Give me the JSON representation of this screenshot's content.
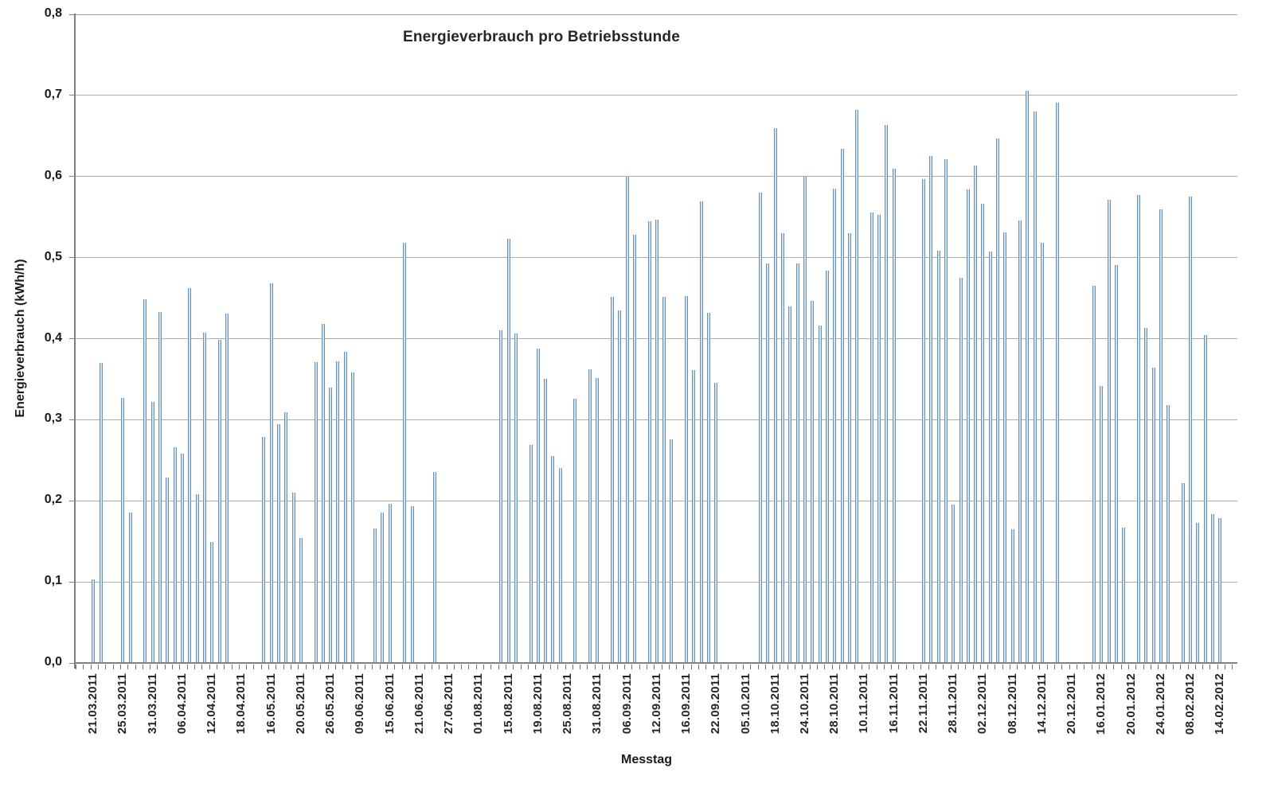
{
  "chart_data": {
    "type": "bar",
    "title": "Energieverbrauch pro Betriebsstunde",
    "xlabel": "Messtag",
    "ylabel": "Energieverbrauch (kWh/h)",
    "unit": "kWh/h",
    "ylim": [
      0.0,
      0.8
    ],
    "y_step": 0.1,
    "grid": true,
    "legend": false,
    "y_tick_labels": [
      "0,0",
      "0,1",
      "0,2",
      "0,3",
      "0,4",
      "0,5",
      "0,6",
      "0,7",
      "0,8"
    ],
    "x_tick_labels": [
      "21.03.2011",
      "25.03.2011",
      "31.03.2011",
      "06.04.2011",
      "12.04.2011",
      "18.04.2011",
      "16.05.2011",
      "20.05.2011",
      "26.05.2011",
      "09.06.2011",
      "15.06.2011",
      "21.06.2011",
      "27.06.2011",
      "01.08.2011",
      "15.08.2011",
      "19.08.2011",
      "25.08.2011",
      "31.08.2011",
      "06.09.2011",
      "12.09.2011",
      "16.09.2011",
      "22.09.2011",
      "05.10.2011",
      "18.10.2011",
      "24.10.2011",
      "28.10.2011",
      "10.11.2011",
      "16.11.2011",
      "22.11.2011",
      "28.11.2011",
      "02.12.2011",
      "08.12.2011",
      "14.12.2011",
      "20.12.2011",
      "16.01.2012",
      "20.01.2012",
      "24.01.2012",
      "08.02.2012",
      "14.02.2012"
    ],
    "x_label_every_n_slots": 4,
    "total_slots": 153,
    "points": [
      {
        "slot": 0,
        "value": 0.103
      },
      {
        "slot": 1,
        "value": 0.37
      },
      {
        "slot": 4,
        "value": 0.327
      },
      {
        "slot": 5,
        "value": 0.186
      },
      {
        "slot": 7,
        "value": 0.449
      },
      {
        "slot": 8,
        "value": 0.322
      },
      {
        "slot": 9,
        "value": 0.433
      },
      {
        "slot": 10,
        "value": 0.229
      },
      {
        "slot": 11,
        "value": 0.266
      },
      {
        "slot": 12,
        "value": 0.258
      },
      {
        "slot": 13,
        "value": 0.462
      },
      {
        "slot": 14,
        "value": 0.208
      },
      {
        "slot": 15,
        "value": 0.407
      },
      {
        "slot": 16,
        "value": 0.149
      },
      {
        "slot": 17,
        "value": 0.399
      },
      {
        "slot": 18,
        "value": 0.431
      },
      {
        "slot": 23,
        "value": 0.279
      },
      {
        "slot": 24,
        "value": 0.468
      },
      {
        "slot": 25,
        "value": 0.295
      },
      {
        "slot": 26,
        "value": 0.309
      },
      {
        "slot": 27,
        "value": 0.21
      },
      {
        "slot": 28,
        "value": 0.154
      },
      {
        "slot": 30,
        "value": 0.371
      },
      {
        "slot": 31,
        "value": 0.418
      },
      {
        "slot": 32,
        "value": 0.34
      },
      {
        "slot": 33,
        "value": 0.372
      },
      {
        "slot": 34,
        "value": 0.384
      },
      {
        "slot": 35,
        "value": 0.358
      },
      {
        "slot": 38,
        "value": 0.166
      },
      {
        "slot": 39,
        "value": 0.186
      },
      {
        "slot": 40,
        "value": 0.196
      },
      {
        "slot": 42,
        "value": 0.518
      },
      {
        "slot": 43,
        "value": 0.193
      },
      {
        "slot": 46,
        "value": 0.236
      },
      {
        "slot": 55,
        "value": 0.41
      },
      {
        "slot": 56,
        "value": 0.523
      },
      {
        "slot": 57,
        "value": 0.406
      },
      {
        "slot": 59,
        "value": 0.269
      },
      {
        "slot": 60,
        "value": 0.388
      },
      {
        "slot": 61,
        "value": 0.35
      },
      {
        "slot": 62,
        "value": 0.255
      },
      {
        "slot": 63,
        "value": 0.241
      },
      {
        "slot": 65,
        "value": 0.326
      },
      {
        "slot": 67,
        "value": 0.362
      },
      {
        "slot": 68,
        "value": 0.351
      },
      {
        "slot": 70,
        "value": 0.452
      },
      {
        "slot": 71,
        "value": 0.435
      },
      {
        "slot": 72,
        "value": 0.6
      },
      {
        "slot": 73,
        "value": 0.528
      },
      {
        "slot": 75,
        "value": 0.545
      },
      {
        "slot": 76,
        "value": 0.547
      },
      {
        "slot": 77,
        "value": 0.452
      },
      {
        "slot": 78,
        "value": 0.276
      },
      {
        "slot": 80,
        "value": 0.453
      },
      {
        "slot": 81,
        "value": 0.361
      },
      {
        "slot": 82,
        "value": 0.569
      },
      {
        "slot": 83,
        "value": 0.432
      },
      {
        "slot": 84,
        "value": 0.346
      },
      {
        "slot": 90,
        "value": 0.58
      },
      {
        "slot": 91,
        "value": 0.493
      },
      {
        "slot": 92,
        "value": 0.66
      },
      {
        "slot": 93,
        "value": 0.53
      },
      {
        "slot": 94,
        "value": 0.44
      },
      {
        "slot": 95,
        "value": 0.493
      },
      {
        "slot": 96,
        "value": 0.6
      },
      {
        "slot": 97,
        "value": 0.447
      },
      {
        "slot": 98,
        "value": 0.416
      },
      {
        "slot": 99,
        "value": 0.484
      },
      {
        "slot": 100,
        "value": 0.585
      },
      {
        "slot": 101,
        "value": 0.634
      },
      {
        "slot": 102,
        "value": 0.53
      },
      {
        "slot": 103,
        "value": 0.682
      },
      {
        "slot": 105,
        "value": 0.556
      },
      {
        "slot": 106,
        "value": 0.553
      },
      {
        "slot": 107,
        "value": 0.664
      },
      {
        "slot": 108,
        "value": 0.61
      },
      {
        "slot": 112,
        "value": 0.597
      },
      {
        "slot": 113,
        "value": 0.625
      },
      {
        "slot": 114,
        "value": 0.509
      },
      {
        "slot": 115,
        "value": 0.621
      },
      {
        "slot": 116,
        "value": 0.195
      },
      {
        "slot": 117,
        "value": 0.475
      },
      {
        "slot": 118,
        "value": 0.584
      },
      {
        "slot": 119,
        "value": 0.614
      },
      {
        "slot": 120,
        "value": 0.566
      },
      {
        "slot": 121,
        "value": 0.508
      },
      {
        "slot": 122,
        "value": 0.647
      },
      {
        "slot": 123,
        "value": 0.531
      },
      {
        "slot": 124,
        "value": 0.165
      },
      {
        "slot": 125,
        "value": 0.546
      },
      {
        "slot": 126,
        "value": 0.706
      },
      {
        "slot": 127,
        "value": 0.68
      },
      {
        "slot": 128,
        "value": 0.518
      },
      {
        "slot": 130,
        "value": 0.691
      },
      {
        "slot": 135,
        "value": 0.465
      },
      {
        "slot": 136,
        "value": 0.342
      },
      {
        "slot": 137,
        "value": 0.571
      },
      {
        "slot": 138,
        "value": 0.491
      },
      {
        "slot": 139,
        "value": 0.167
      },
      {
        "slot": 141,
        "value": 0.577
      },
      {
        "slot": 142,
        "value": 0.413
      },
      {
        "slot": 143,
        "value": 0.364
      },
      {
        "slot": 144,
        "value": 0.56
      },
      {
        "slot": 145,
        "value": 0.318
      },
      {
        "slot": 147,
        "value": 0.222
      },
      {
        "slot": 148,
        "value": 0.575
      },
      {
        "slot": 149,
        "value": 0.173
      },
      {
        "slot": 150,
        "value": 0.404
      },
      {
        "slot": 151,
        "value": 0.184
      },
      {
        "slot": 152,
        "value": 0.179
      }
    ]
  },
  "colors": {
    "bar_edge": "#6a92b3",
    "bar_fill": "#cfe0ee",
    "gridline": "#ababab",
    "axis": "#808080",
    "text": "#262626"
  }
}
